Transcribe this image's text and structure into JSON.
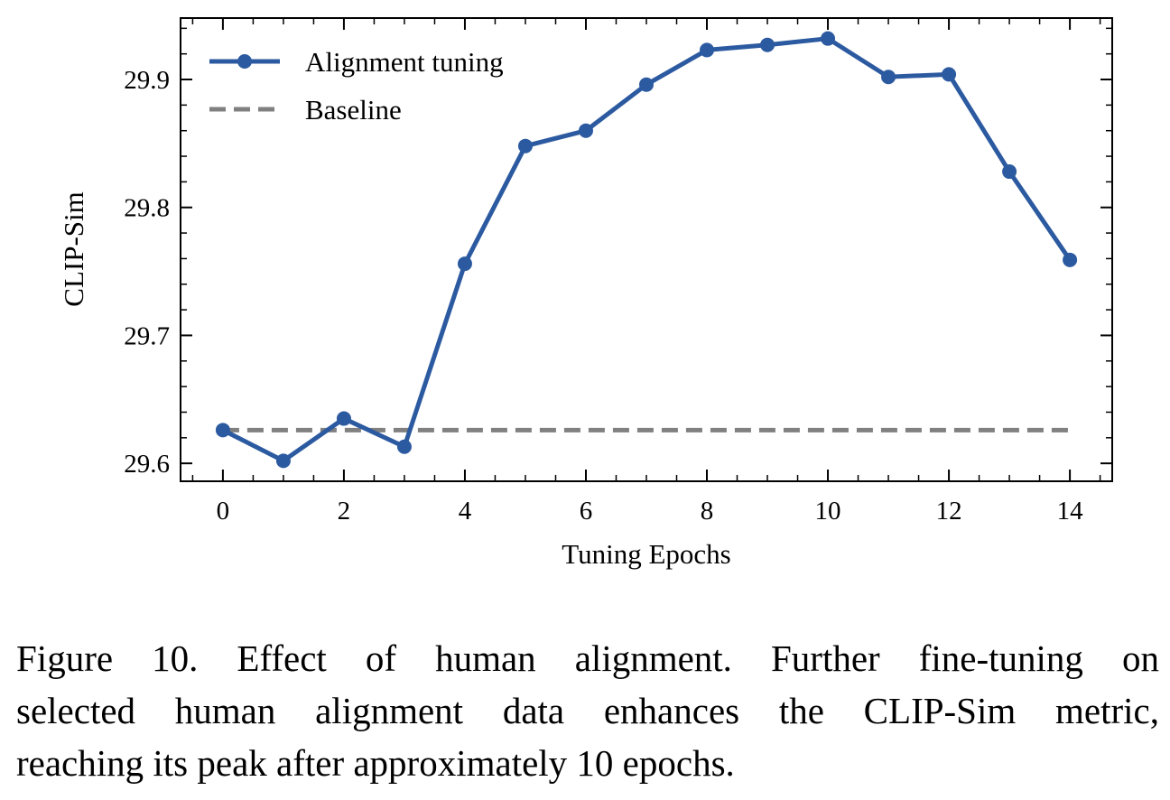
{
  "chart_data": {
    "type": "line",
    "title": "",
    "xlabel": "Tuning Epochs",
    "ylabel": "CLIP-Sim",
    "xlim": [
      -0.7,
      14.7
    ],
    "ylim": [
      29.586,
      29.948
    ],
    "xticks": [
      0,
      2,
      4,
      6,
      8,
      10,
      12,
      14
    ],
    "yticks": [
      29.6,
      29.7,
      29.8,
      29.9
    ],
    "xtick_labels": [
      "0",
      "2",
      "4",
      "6",
      "8",
      "10",
      "12",
      "14"
    ],
    "ytick_labels": [
      "29.6",
      "29.7",
      "29.8",
      "29.9"
    ],
    "grid": false,
    "legend": "top-left",
    "series": [
      {
        "name": "Alignment tuning",
        "style": "solid-markers",
        "color": "#2c5aa0",
        "x": [
          0,
          1,
          2,
          3,
          4,
          5,
          6,
          7,
          8,
          9,
          10,
          11,
          12,
          13,
          14
        ],
        "y": [
          29.626,
          29.602,
          29.635,
          29.613,
          29.756,
          29.848,
          29.86,
          29.896,
          29.923,
          29.927,
          29.932,
          29.902,
          29.904,
          29.828,
          29.759
        ]
      },
      {
        "name": "Baseline",
        "style": "dashed",
        "color": "#808080",
        "x": [
          0,
          14
        ],
        "y": [
          29.626,
          29.626
        ]
      }
    ]
  },
  "caption": {
    "lines": [
      "Figure 10.  Effect of human alignment.  Further fine-tuning on",
      "selected human alignment data enhances the CLIP-Sim metric,",
      "reaching its peak after approximately 10 epochs."
    ]
  }
}
